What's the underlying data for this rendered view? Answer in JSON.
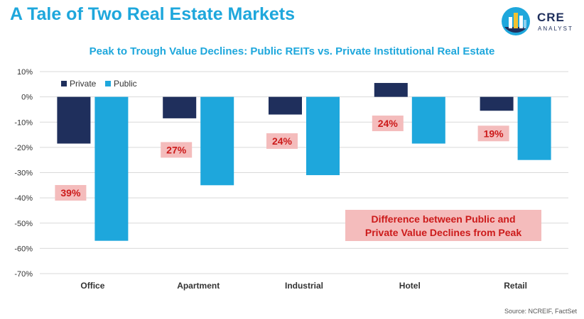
{
  "header": {
    "title": "A Tale of Two Real Estate Markets",
    "logo_main": "CRE",
    "logo_sub": "ANALYST"
  },
  "colors": {
    "private": "#1f2f5c",
    "public": "#1ea7dc",
    "label_bg": "#f4bcbc",
    "label_text": "#cc1a1a",
    "grid": "#d9d9d9"
  },
  "chart_data": {
    "type": "bar",
    "title": "Peak to Trough Value Declines: Public REITs vs. Private Institutional Real Estate",
    "categories": [
      "Office",
      "Apartment",
      "Industrial",
      "Hotel",
      "Retail"
    ],
    "series": [
      {
        "name": "Private",
        "values": [
          -18.5,
          -8.5,
          -7,
          5.5,
          -5.5
        ]
      },
      {
        "name": "Public",
        "values": [
          -57,
          -35,
          -31,
          -18.5,
          -25
        ]
      }
    ],
    "yticks": [
      10,
      0,
      -10,
      -20,
      -30,
      -40,
      -50,
      -60,
      -70
    ],
    "ytick_labels": [
      "10%",
      "0%",
      "-10%",
      "-20%",
      "-30%",
      "-40%",
      "-50%",
      "-60%",
      "-70%"
    ],
    "ylim": [
      -70,
      10
    ],
    "annotations": [
      {
        "category": "Office",
        "text": "39%",
        "y": -38
      },
      {
        "category": "Apartment",
        "text": "27%",
        "y": -21
      },
      {
        "category": "Industrial",
        "text": "24%",
        "y": -17.5
      },
      {
        "category": "Hotel",
        "text": "24%",
        "y": -10.5
      },
      {
        "category": "Retail",
        "text": "19%",
        "y": -14.5
      }
    ],
    "callout_lines": [
      "Difference between Public and",
      "Private Value Declines from Peak"
    ],
    "legend_position": "top-left"
  },
  "source": "Source: NCREIF, FactSet"
}
